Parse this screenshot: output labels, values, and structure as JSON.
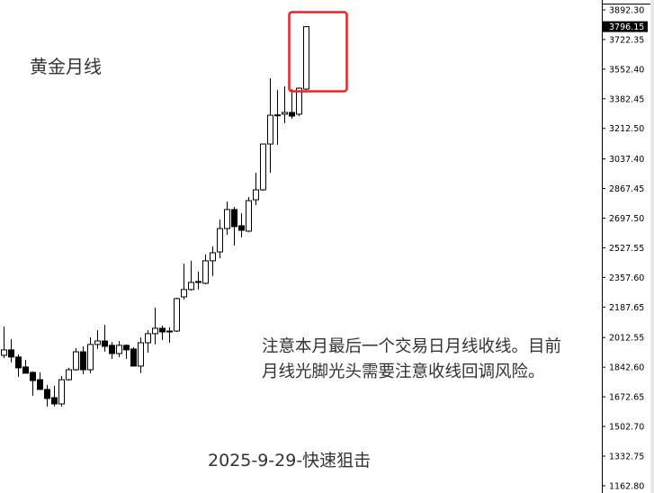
{
  "title": "黄金月线",
  "note_lines": [
    "注意本月最后一个交易日月线收线。目前",
    "月线光脚光头需要注意收线回调风险。"
  ],
  "footer": "2025-9-29-快速狙击",
  "colors": {
    "bull_fill": "#ffffff",
    "bear_fill": "#000000",
    "candle_stroke": "#000000",
    "highlight_box": "#ee2222",
    "current_price_bg": "#000000"
  },
  "chart_data": {
    "type": "candlestick",
    "title": "黄金月线",
    "ylim": [
      1121,
      3949
    ],
    "y_ticks": [
      "3892.30",
      "3722.35",
      "3552.40",
      "3382.45",
      "3212.50",
      "3037.40",
      "2867.45",
      "2697.50",
      "2527.55",
      "2357.60",
      "2187.65",
      "2012.55",
      "1842.60",
      "1672.65",
      "1502.70",
      "1332.75",
      "1162.80"
    ],
    "current_price": "3796.15",
    "grid": false,
    "highlight": "last candle",
    "candles": [
      [
        1911,
        2076,
        1895,
        1942
      ],
      [
        1942,
        2004,
        1870,
        1901
      ],
      [
        1901,
        1916,
        1787,
        1839
      ],
      [
        1844,
        1885,
        1808,
        1808
      ],
      [
        1813,
        1818,
        1679,
        1766
      ],
      [
        1771,
        1813,
        1715,
        1715
      ],
      [
        1715,
        1741,
        1617,
        1663
      ],
      [
        1668,
        1736,
        1617,
        1632
      ],
      [
        1632,
        1792,
        1617,
        1771
      ],
      [
        1771,
        1839,
        1766,
        1828
      ],
      [
        1828,
        1952,
        1823,
        1931
      ],
      [
        1931,
        1962,
        1802,
        1828
      ],
      [
        1828,
        2014,
        1808,
        1973
      ],
      [
        1973,
        2055,
        1947,
        1993
      ],
      [
        1993,
        2086,
        1931,
        1962
      ],
      [
        1968,
        1988,
        1890,
        1921
      ],
      [
        1921,
        1993,
        1900,
        1968
      ],
      [
        1968,
        1973,
        1890,
        1942
      ],
      [
        1947,
        1957,
        1849,
        1849
      ],
      [
        1849,
        2014,
        1808,
        1983
      ],
      [
        1983,
        2055,
        1926,
        2035
      ],
      [
        2035,
        2184,
        1973,
        2066
      ],
      [
        2066,
        2081,
        1999,
        2045
      ],
      [
        2050,
        2071,
        1983,
        2045
      ],
      [
        2050,
        2241,
        2045,
        2236
      ],
      [
        2246,
        2437,
        2231,
        2288
      ],
      [
        2288,
        2453,
        2282,
        2329
      ],
      [
        2329,
        2391,
        2288,
        2334
      ],
      [
        2324,
        2489,
        2318,
        2453
      ],
      [
        2453,
        2535,
        2365,
        2499
      ],
      [
        2504,
        2690,
        2468,
        2638
      ],
      [
        2638,
        2793,
        2602,
        2747
      ],
      [
        2747,
        2762,
        2540,
        2649
      ],
      [
        2654,
        2726,
        2587,
        2628
      ],
      [
        2623,
        2819,
        2618,
        2798
      ],
      [
        2803,
        2958,
        2772,
        2860
      ],
      [
        2860,
        3123,
        2855,
        3123
      ],
      [
        3123,
        3500,
        2958,
        3288
      ],
      [
        3288,
        3433,
        3118,
        3290
      ],
      [
        3294,
        3454,
        3242,
        3304
      ],
      [
        3304,
        3438,
        3268,
        3283
      ],
      [
        3294,
        3448,
        3283,
        3443
      ],
      [
        3438,
        3799,
        3433,
        3796.15
      ]
    ],
    "candle_format": [
      "open",
      "high",
      "low",
      "close"
    ]
  }
}
